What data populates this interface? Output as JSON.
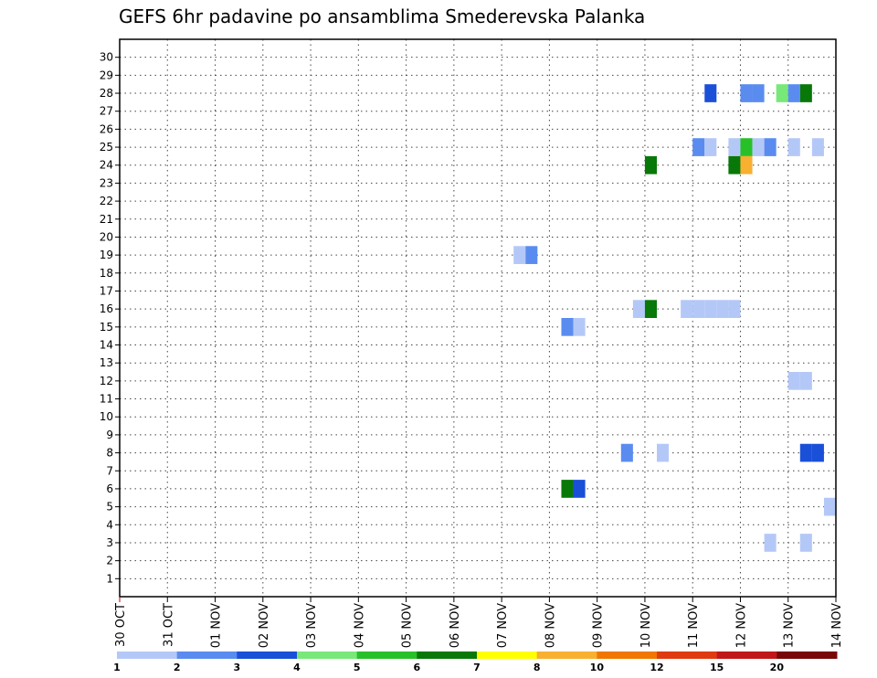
{
  "chart_data": {
    "type": "heatmap",
    "title": "GEFS 6hr padavine po ansamblima Smederevska Palanka",
    "xlabel": "",
    "ylabel": "",
    "x_tick_labels": [
      "30 OCT",
      "31 OCT",
      "01 NOV",
      "02 NOV",
      "03 NOV",
      "04 NOV",
      "05 NOV",
      "06 NOV",
      "07 NOV",
      "08 NOV",
      "09 NOV",
      "10 NOV",
      "11 NOV",
      "12 NOV",
      "13 NOV",
      "14 NOV"
    ],
    "y_tick_labels": [
      "1",
      "2",
      "3",
      "4",
      "5",
      "6",
      "7",
      "8",
      "9",
      "10",
      "11",
      "12",
      "13",
      "14",
      "15",
      "16",
      "17",
      "18",
      "19",
      "20",
      "21",
      "22",
      "23",
      "24",
      "25",
      "26",
      "27",
      "28",
      "29",
      "30"
    ],
    "xlim": [
      0,
      15
    ],
    "ylim": [
      0,
      31
    ],
    "cell_width_days": 0.25,
    "grid": true,
    "colorbar": {
      "position": "bottom",
      "bounds": [
        1,
        2,
        3,
        4,
        5,
        6,
        7,
        8,
        10,
        12,
        15,
        20
      ],
      "labels": [
        "1",
        "2",
        "3",
        "4",
        "5",
        "6",
        "7",
        "8",
        "10",
        "12",
        "15",
        "20"
      ],
      "colors": [
        "#b4c8f8",
        "#5a8cf0",
        "#1a4fd8",
        "#78e878",
        "#28c028",
        "#087808",
        "#ffff00",
        "#f8b030",
        "#f07800",
        "#e03a10",
        "#c01818",
        "#780808"
      ]
    },
    "cells": [
      {
        "member": 28,
        "x": 12.25,
        "value": 3.5
      },
      {
        "member": 28,
        "x": 13.0,
        "value": 2.5
      },
      {
        "member": 28,
        "x": 13.25,
        "value": 2.5
      },
      {
        "member": 28,
        "x": 13.75,
        "value": 4.5
      },
      {
        "member": 28,
        "x": 14.0,
        "value": 2.5
      },
      {
        "member": 28,
        "x": 14.25,
        "value": 6.5
      },
      {
        "member": 25,
        "x": 12.0,
        "value": 2.5
      },
      {
        "member": 25,
        "x": 12.25,
        "value": 1.5
      },
      {
        "member": 25,
        "x": 12.75,
        "value": 1.5
      },
      {
        "member": 25,
        "x": 13.0,
        "value": 5.5
      },
      {
        "member": 25,
        "x": 13.25,
        "value": 1.5
      },
      {
        "member": 25,
        "x": 13.5,
        "value": 2.5
      },
      {
        "member": 25,
        "x": 14.0,
        "value": 1.5
      },
      {
        "member": 25,
        "x": 14.5,
        "value": 1.5
      },
      {
        "member": 24,
        "x": 11.0,
        "value": 6.5
      },
      {
        "member": 24,
        "x": 12.75,
        "value": 6.5
      },
      {
        "member": 24,
        "x": 13.0,
        "value": 8.5
      },
      {
        "member": 19,
        "x": 8.25,
        "value": 1.5
      },
      {
        "member": 19,
        "x": 8.5,
        "value": 2.5
      },
      {
        "member": 16,
        "x": 10.75,
        "value": 1.5
      },
      {
        "member": 16,
        "x": 11.0,
        "value": 6.5
      },
      {
        "member": 16,
        "x": 11.75,
        "value": 1.5
      },
      {
        "member": 16,
        "x": 12.0,
        "value": 1.5
      },
      {
        "member": 16,
        "x": 12.25,
        "value": 1.5
      },
      {
        "member": 16,
        "x": 12.5,
        "value": 1.5
      },
      {
        "member": 16,
        "x": 12.75,
        "value": 1.5
      },
      {
        "member": 15,
        "x": 9.25,
        "value": 2.5
      },
      {
        "member": 15,
        "x": 9.5,
        "value": 1.5
      },
      {
        "member": 12,
        "x": 14.0,
        "value": 1.5
      },
      {
        "member": 12,
        "x": 14.25,
        "value": 1.5
      },
      {
        "member": 8,
        "x": 10.5,
        "value": 2.5
      },
      {
        "member": 8,
        "x": 11.25,
        "value": 1.5
      },
      {
        "member": 8,
        "x": 14.25,
        "value": 3.5
      },
      {
        "member": 8,
        "x": 14.5,
        "value": 3.5
      },
      {
        "member": 6,
        "x": 9.25,
        "value": 6.5
      },
      {
        "member": 6,
        "x": 9.5,
        "value": 3.5
      },
      {
        "member": 5,
        "x": 14.75,
        "value": 1.5
      },
      {
        "member": 3,
        "x": 13.5,
        "value": 1.5
      },
      {
        "member": 3,
        "x": 14.25,
        "value": 1.5
      }
    ]
  }
}
